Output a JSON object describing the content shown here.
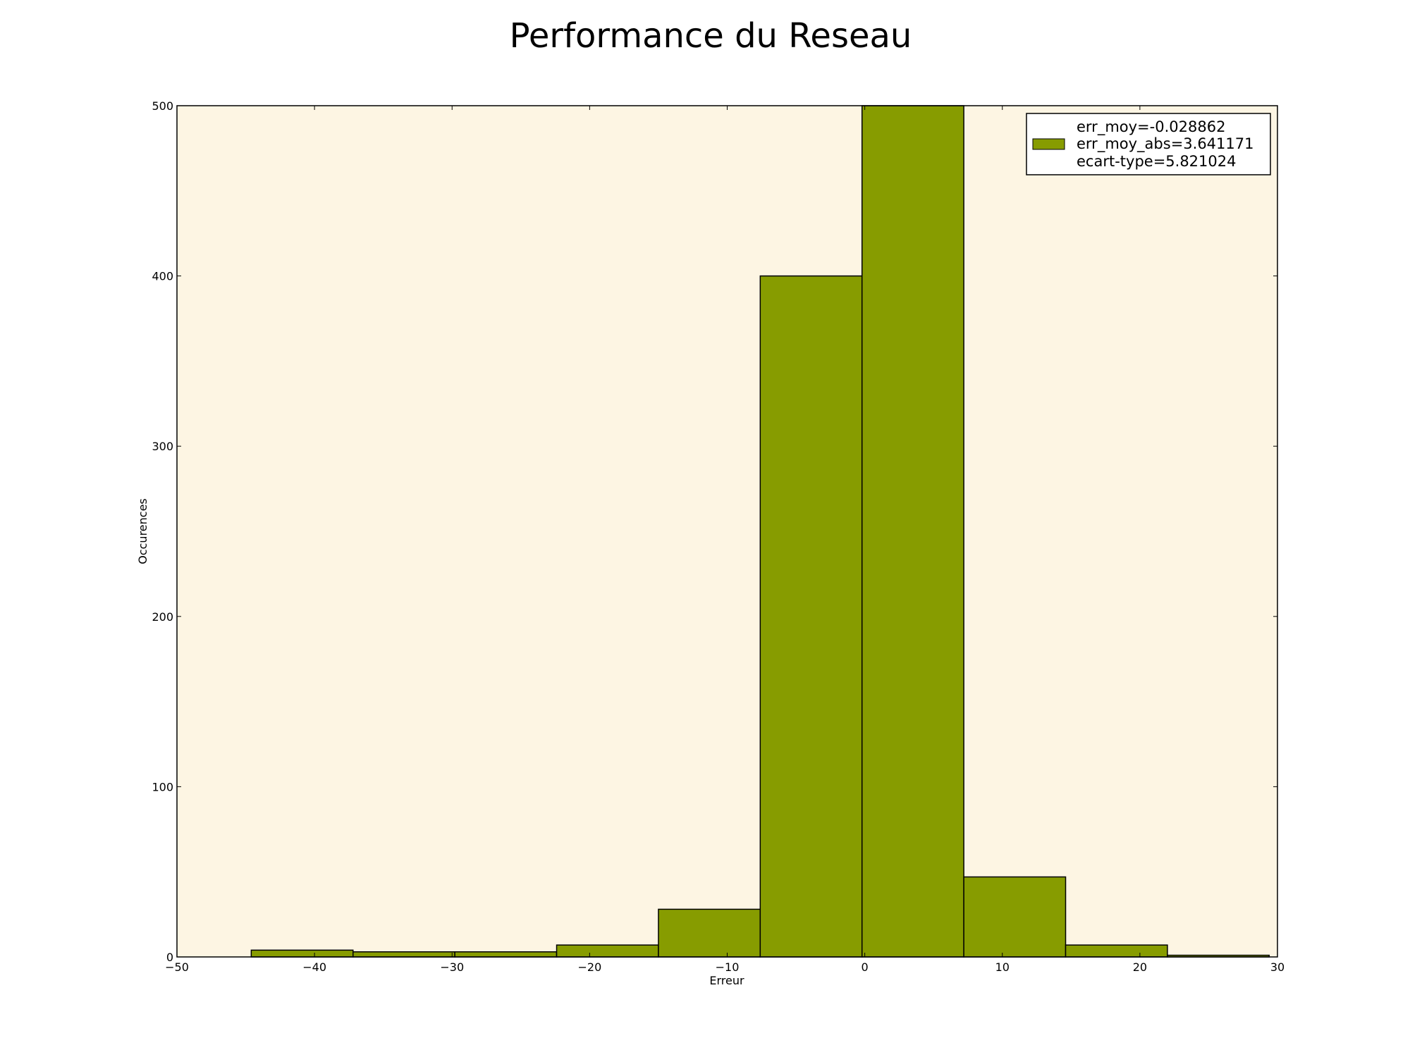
{
  "chart_data": {
    "type": "bar",
    "title": "Performance du Reseau",
    "xlabel": "Erreur",
    "ylabel": "Occurences",
    "xlim": [
      -50,
      30
    ],
    "ylim": [
      0,
      500
    ],
    "x_ticks": [
      -50,
      -40,
      -30,
      -20,
      -10,
      0,
      10,
      20,
      30
    ],
    "y_ticks": [
      0,
      100,
      200,
      300,
      400,
      500
    ],
    "bins": [
      {
        "start": -44.6,
        "end": -37.2,
        "value": 4
      },
      {
        "start": -37.2,
        "end": -29.8,
        "value": 3
      },
      {
        "start": -29.8,
        "end": -22.4,
        "value": 3
      },
      {
        "start": -22.4,
        "end": -15.0,
        "value": 7
      },
      {
        "start": -15.0,
        "end": -7.6,
        "value": 28
      },
      {
        "start": -7.6,
        "end": -0.2,
        "value": 400
      },
      {
        "start": -0.2,
        "end": 7.2,
        "value": 500
      },
      {
        "start": 7.2,
        "end": 14.6,
        "value": 47
      },
      {
        "start": 14.6,
        "end": 22.0,
        "value": 7
      },
      {
        "start": 22.0,
        "end": 29.4,
        "value": 1
      }
    ],
    "legend": {
      "placement": "top-right",
      "entries": [
        "err_moy=-0.028862",
        "err_moy_abs=3.641171",
        "ecart-type=5.821024"
      ]
    },
    "grid": false,
    "colors": {
      "bar": "#879c00",
      "bar_edge": "#000000",
      "plot_background": "#fdf5e3"
    }
  }
}
